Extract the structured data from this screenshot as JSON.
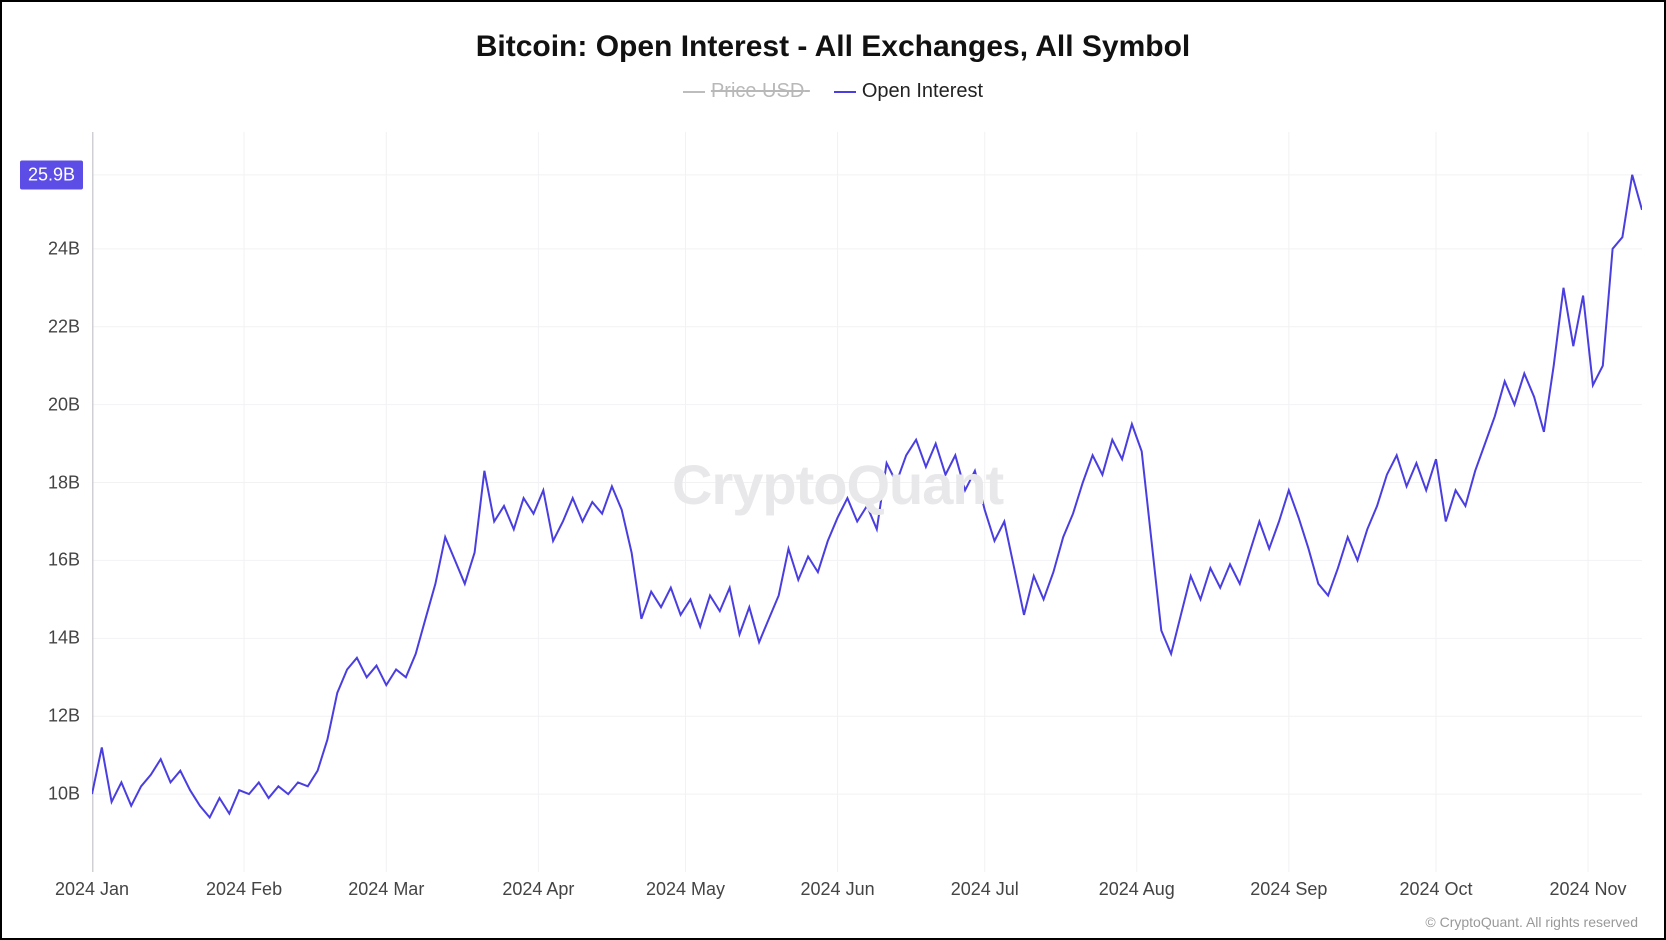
{
  "chart": {
    "type": "line",
    "title": "Bitcoin: Open Interest - All Exchanges, All Symbol",
    "watermark": "CryptoQuant",
    "copyright": "© CryptoQuant. All rights reserved",
    "background_color": "#ffffff",
    "grid_color": "#f2f2f4",
    "axis_color": "#d0d0d4",
    "title_fontsize": 30,
    "legend_fontsize": 20,
    "label_fontsize": 18,
    "legend": [
      {
        "label": "Price USD",
        "color": "#bdbdbd",
        "disabled": true
      },
      {
        "label": "Open Interest",
        "color": "#4a3ee0",
        "disabled": false
      }
    ],
    "y_axis": {
      "min": 8,
      "max": 27,
      "ticks": [
        {
          "value": 10,
          "label": "10B"
        },
        {
          "value": 12,
          "label": "12B"
        },
        {
          "value": 14,
          "label": "14B"
        },
        {
          "value": 16,
          "label": "16B"
        },
        {
          "value": 18,
          "label": "18B"
        },
        {
          "value": 20,
          "label": "20B"
        },
        {
          "value": 22,
          "label": "22B"
        },
        {
          "value": 24,
          "label": "24B"
        }
      ],
      "highlight": {
        "value": 25.9,
        "label": "25.9B",
        "bg": "#5b4de6",
        "color": "#ffffff"
      }
    },
    "x_axis": {
      "min": 0,
      "max": 316,
      "ticks": [
        {
          "value": 0,
          "label": "2024 Jan"
        },
        {
          "value": 31,
          "label": "2024 Feb"
        },
        {
          "value": 60,
          "label": "2024 Mar"
        },
        {
          "value": 91,
          "label": "2024 Apr"
        },
        {
          "value": 121,
          "label": "2024 May"
        },
        {
          "value": 152,
          "label": "2024 Jun"
        },
        {
          "value": 182,
          "label": "2024 Jul"
        },
        {
          "value": 213,
          "label": "2024 Aug"
        },
        {
          "value": 244,
          "label": "2024 Sep"
        },
        {
          "value": 274,
          "label": "2024 Oct"
        },
        {
          "value": 305,
          "label": "2024 Nov"
        }
      ]
    },
    "series": [
      {
        "name": "Open Interest",
        "color": "#4a3ee0",
        "line_width": 2,
        "data": [
          [
            0,
            10.0
          ],
          [
            2,
            11.2
          ],
          [
            4,
            9.8
          ],
          [
            6,
            10.3
          ],
          [
            8,
            9.7
          ],
          [
            10,
            10.2
          ],
          [
            12,
            10.5
          ],
          [
            14,
            10.9
          ],
          [
            16,
            10.3
          ],
          [
            18,
            10.6
          ],
          [
            20,
            10.1
          ],
          [
            22,
            9.7
          ],
          [
            24,
            9.4
          ],
          [
            26,
            9.9
          ],
          [
            28,
            9.5
          ],
          [
            30,
            10.1
          ],
          [
            32,
            10.0
          ],
          [
            34,
            10.3
          ],
          [
            36,
            9.9
          ],
          [
            38,
            10.2
          ],
          [
            40,
            10.0
          ],
          [
            42,
            10.3
          ],
          [
            44,
            10.2
          ],
          [
            46,
            10.6
          ],
          [
            48,
            11.4
          ],
          [
            50,
            12.6
          ],
          [
            52,
            13.2
          ],
          [
            54,
            13.5
          ],
          [
            56,
            13.0
          ],
          [
            58,
            13.3
          ],
          [
            60,
            12.8
          ],
          [
            62,
            13.2
          ],
          [
            64,
            13.0
          ],
          [
            66,
            13.6
          ],
          [
            68,
            14.5
          ],
          [
            70,
            15.4
          ],
          [
            72,
            16.6
          ],
          [
            74,
            16.0
          ],
          [
            76,
            15.4
          ],
          [
            78,
            16.2
          ],
          [
            80,
            18.3
          ],
          [
            82,
            17.0
          ],
          [
            84,
            17.4
          ],
          [
            86,
            16.8
          ],
          [
            88,
            17.6
          ],
          [
            90,
            17.2
          ],
          [
            92,
            17.8
          ],
          [
            94,
            16.5
          ],
          [
            96,
            17.0
          ],
          [
            98,
            17.6
          ],
          [
            100,
            17.0
          ],
          [
            102,
            17.5
          ],
          [
            104,
            17.2
          ],
          [
            106,
            17.9
          ],
          [
            108,
            17.3
          ],
          [
            110,
            16.2
          ],
          [
            112,
            14.5
          ],
          [
            114,
            15.2
          ],
          [
            116,
            14.8
          ],
          [
            118,
            15.3
          ],
          [
            120,
            14.6
          ],
          [
            122,
            15.0
          ],
          [
            124,
            14.3
          ],
          [
            126,
            15.1
          ],
          [
            128,
            14.7
          ],
          [
            130,
            15.3
          ],
          [
            132,
            14.1
          ],
          [
            134,
            14.8
          ],
          [
            136,
            13.9
          ],
          [
            138,
            14.5
          ],
          [
            140,
            15.1
          ],
          [
            142,
            16.3
          ],
          [
            144,
            15.5
          ],
          [
            146,
            16.1
          ],
          [
            148,
            15.7
          ],
          [
            150,
            16.5
          ],
          [
            152,
            17.1
          ],
          [
            154,
            17.6
          ],
          [
            156,
            17.0
          ],
          [
            158,
            17.4
          ],
          [
            160,
            16.8
          ],
          [
            162,
            18.5
          ],
          [
            164,
            18.0
          ],
          [
            166,
            18.7
          ],
          [
            168,
            19.1
          ],
          [
            170,
            18.4
          ],
          [
            172,
            19.0
          ],
          [
            174,
            18.2
          ],
          [
            176,
            18.7
          ],
          [
            178,
            17.8
          ],
          [
            180,
            18.3
          ],
          [
            182,
            17.3
          ],
          [
            184,
            16.5
          ],
          [
            186,
            17.0
          ],
          [
            188,
            15.8
          ],
          [
            190,
            14.6
          ],
          [
            192,
            15.6
          ],
          [
            194,
            15.0
          ],
          [
            196,
            15.7
          ],
          [
            198,
            16.6
          ],
          [
            200,
            17.2
          ],
          [
            202,
            18.0
          ],
          [
            204,
            18.7
          ],
          [
            206,
            18.2
          ],
          [
            208,
            19.1
          ],
          [
            210,
            18.6
          ],
          [
            212,
            19.5
          ],
          [
            214,
            18.8
          ],
          [
            216,
            16.5
          ],
          [
            218,
            14.2
          ],
          [
            220,
            13.6
          ],
          [
            222,
            14.6
          ],
          [
            224,
            15.6
          ],
          [
            226,
            15.0
          ],
          [
            228,
            15.8
          ],
          [
            230,
            15.3
          ],
          [
            232,
            15.9
          ],
          [
            234,
            15.4
          ],
          [
            236,
            16.2
          ],
          [
            238,
            17.0
          ],
          [
            240,
            16.3
          ],
          [
            242,
            17.0
          ],
          [
            244,
            17.8
          ],
          [
            246,
            17.1
          ],
          [
            248,
            16.3
          ],
          [
            250,
            15.4
          ],
          [
            252,
            15.1
          ],
          [
            254,
            15.8
          ],
          [
            256,
            16.6
          ],
          [
            258,
            16.0
          ],
          [
            260,
            16.8
          ],
          [
            262,
            17.4
          ],
          [
            264,
            18.2
          ],
          [
            266,
            18.7
          ],
          [
            268,
            17.9
          ],
          [
            270,
            18.5
          ],
          [
            272,
            17.8
          ],
          [
            274,
            18.6
          ],
          [
            276,
            17.0
          ],
          [
            278,
            17.8
          ],
          [
            280,
            17.4
          ],
          [
            282,
            18.3
          ],
          [
            284,
            19.0
          ],
          [
            286,
            19.7
          ],
          [
            288,
            20.6
          ],
          [
            290,
            20.0
          ],
          [
            292,
            20.8
          ],
          [
            294,
            20.2
          ],
          [
            296,
            19.3
          ],
          [
            298,
            21.0
          ],
          [
            300,
            23.0
          ],
          [
            302,
            21.5
          ],
          [
            304,
            22.8
          ],
          [
            306,
            20.5
          ],
          [
            308,
            21.0
          ],
          [
            310,
            24.0
          ],
          [
            312,
            24.3
          ],
          [
            314,
            25.9
          ],
          [
            316,
            25.0
          ]
        ]
      }
    ]
  }
}
